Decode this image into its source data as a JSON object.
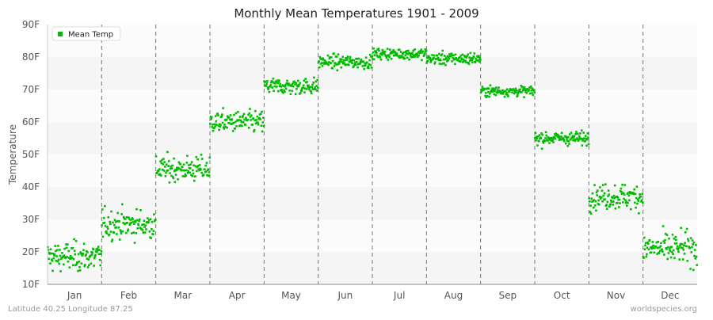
{
  "chart_data": {
    "type": "scatter",
    "title": "Monthly Mean Temperatures 1901 - 2009",
    "xlabel": "",
    "ylabel": "Temperature",
    "ylim": [
      10,
      90
    ],
    "yticks": [
      "10F",
      "20F",
      "30F",
      "40F",
      "50F",
      "60F",
      "70F",
      "80F",
      "90F"
    ],
    "ytick_values": [
      10,
      20,
      30,
      40,
      50,
      60,
      70,
      80,
      90
    ],
    "categories": [
      "Jan",
      "Feb",
      "Mar",
      "Apr",
      "May",
      "Jun",
      "Jul",
      "Aug",
      "Sep",
      "Oct",
      "Nov",
      "Dec"
    ],
    "years": [
      1901,
      2009
    ],
    "series": [
      {
        "name": "Mean Temp",
        "color": "#00bb00",
        "monthly_center": [
          18.5,
          28.5,
          45.5,
          60.0,
          71.0,
          78.5,
          81.0,
          79.5,
          69.5,
          55.0,
          37.0,
          21.0
        ],
        "monthly_spread": [
          3.5,
          3.5,
          3.0,
          2.6,
          2.0,
          1.6,
          1.3,
          1.5,
          1.2,
          1.6,
          3.0,
          3.8
        ]
      }
    ],
    "grid": "horizontal bands with dashed month separators",
    "legend": "top-left"
  },
  "footer": {
    "left": "Latitude 40.25 Longitude 87.25",
    "right": "worldspecies.org"
  }
}
